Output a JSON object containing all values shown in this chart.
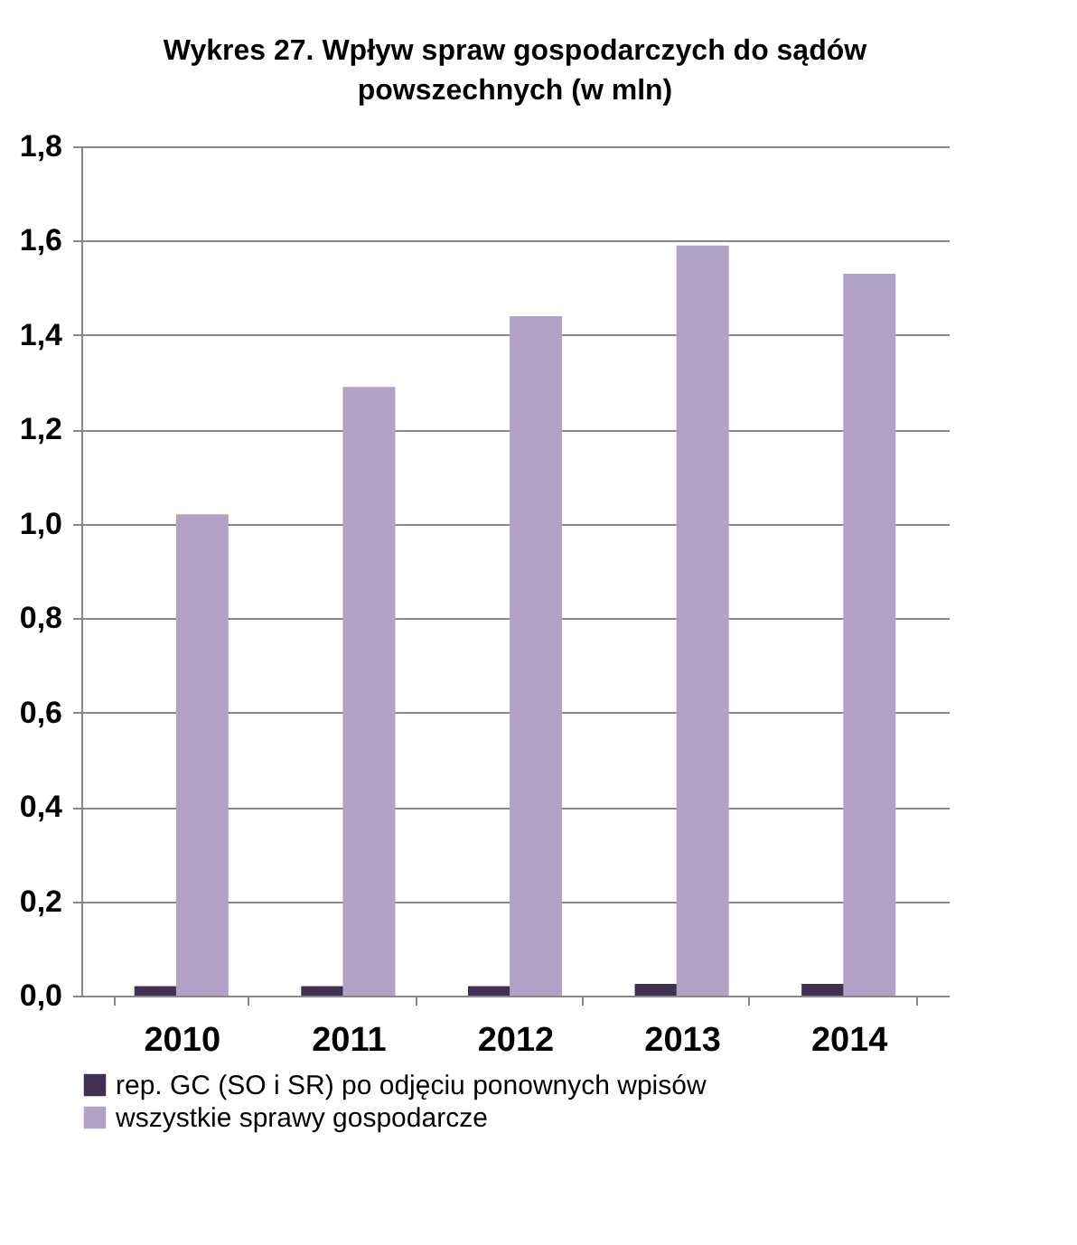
{
  "chart_data": {
    "type": "bar",
    "title": "Wykres 27. Wpływ spraw  gospodarczych do sądów powszechnych (w mln)",
    "categories": [
      "2010",
      "2011",
      "2012",
      "2013",
      "2014"
    ],
    "series": [
      {
        "name": "rep. GC (SO i SR) po odjęciu ponownych wpisów",
        "color": "#403152",
        "values": [
          0.02,
          0.02,
          0.02,
          0.025,
          0.025
        ]
      },
      {
        "name": "wszystkie sprawy gospodarcze",
        "color": "#b3a2c7",
        "values": [
          1.02,
          1.29,
          1.44,
          1.59,
          1.53
        ]
      }
    ],
    "ylim": [
      0,
      1.8
    ],
    "yticks": [
      {
        "value": 0,
        "label": "0,0"
      },
      {
        "value": 0.2,
        "label": "0,2"
      },
      {
        "value": 0.4,
        "label": "0,4"
      },
      {
        "value": 0.6,
        "label": "0,6"
      },
      {
        "value": 0.8,
        "label": "0,8"
      },
      {
        "value": 1.0,
        "label": "1,0"
      },
      {
        "value": 1.2,
        "label": "1,2"
      },
      {
        "value": 1.4,
        "label": "1,4"
      },
      {
        "value": 1.6,
        "label": "1,6"
      },
      {
        "value": 1.8,
        "label": "1,8"
      }
    ],
    "grid": "y",
    "legend": "bottom"
  }
}
